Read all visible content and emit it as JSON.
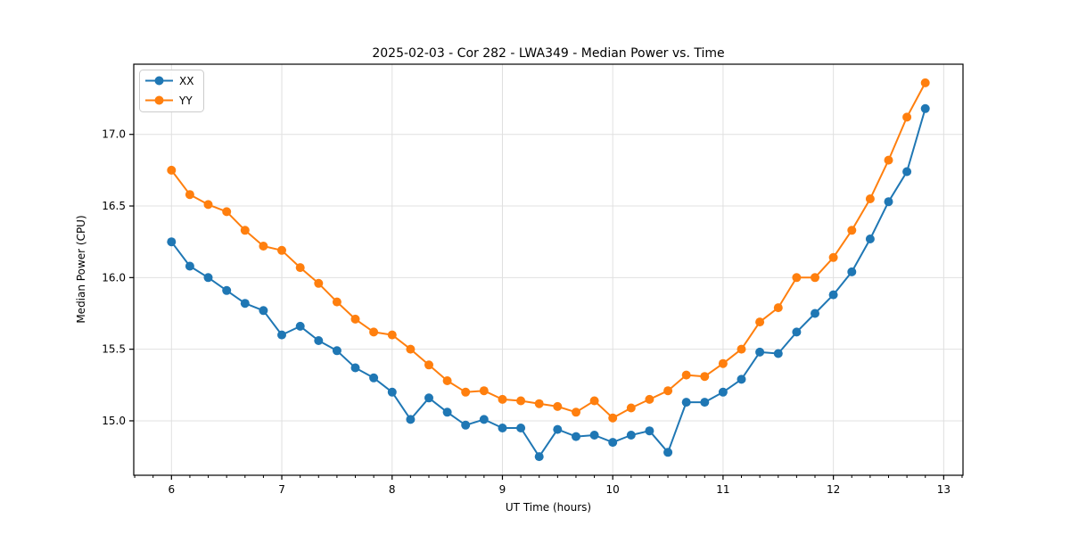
{
  "figure": {
    "background": "#ffffff",
    "spine_color": "#000000",
    "tick_color": "#000000"
  },
  "chart_data": {
    "type": "line",
    "title": "2025-02-03 - Cor 282 - LWA349 - Median Power vs. Time",
    "xlabel": "UT Time (hours)",
    "ylabel": "Median Power (CPU)",
    "xlim": [
      5.658,
      13.175
    ],
    "ylim": [
      14.62,
      17.49
    ],
    "grid": true,
    "grid_color": "#e0e0e0",
    "legend_position": "upper left",
    "xticks": {
      "values": [
        6,
        7,
        8,
        9,
        10,
        11,
        12,
        13
      ],
      "labels": [
        "6",
        "7",
        "8",
        "9",
        "10",
        "11",
        "12",
        "13"
      ]
    },
    "yticks": {
      "values": [
        15.0,
        15.5,
        16.0,
        16.5,
        17.0
      ],
      "labels": [
        "15.0",
        "15.5",
        "16.0",
        "16.5",
        "17.0"
      ]
    },
    "minor_xtick_step": 0.166667,
    "marker": "circle",
    "marker_radius": 5,
    "line_width": 2,
    "x": [
      6.0,
      6.1667,
      6.3333,
      6.5,
      6.6667,
      6.8333,
      7.0,
      7.1667,
      7.3333,
      7.5,
      7.6667,
      7.8333,
      8.0,
      8.1667,
      8.3333,
      8.5,
      8.6667,
      8.8333,
      9.0,
      9.1667,
      9.3333,
      9.5,
      9.6667,
      9.8333,
      10.0,
      10.1667,
      10.3333,
      10.5,
      10.6667,
      10.8333,
      11.0,
      11.1667,
      11.3333,
      11.5,
      11.6667,
      11.8333,
      12.0,
      12.1667,
      12.3333,
      12.5,
      12.6667,
      12.8333
    ],
    "series": [
      {
        "name": "XX",
        "color": "#1f77b4",
        "values": [
          16.25,
          16.08,
          16.0,
          15.91,
          15.82,
          15.77,
          15.6,
          15.66,
          15.56,
          15.49,
          15.37,
          15.3,
          15.2,
          15.01,
          15.16,
          15.06,
          14.97,
          15.01,
          14.95,
          14.95,
          14.75,
          14.94,
          14.89,
          14.9,
          14.85,
          14.9,
          14.93,
          14.78,
          15.13,
          15.13,
          15.2,
          15.29,
          15.48,
          15.47,
          15.62,
          15.75,
          15.88,
          16.04,
          16.27,
          16.53,
          16.74,
          17.18
        ]
      },
      {
        "name": "YY",
        "color": "#ff7f0e",
        "values": [
          16.75,
          16.58,
          16.51,
          16.46,
          16.33,
          16.22,
          16.19,
          16.07,
          15.96,
          15.83,
          15.71,
          15.62,
          15.6,
          15.5,
          15.39,
          15.28,
          15.2,
          15.21,
          15.15,
          15.14,
          15.12,
          15.1,
          15.06,
          15.14,
          15.02,
          15.09,
          15.15,
          15.21,
          15.32,
          15.31,
          15.4,
          15.5,
          15.69,
          15.79,
          16.0,
          16.0,
          16.14,
          16.33,
          16.55,
          16.82,
          17.12,
          17.36
        ]
      }
    ]
  }
}
